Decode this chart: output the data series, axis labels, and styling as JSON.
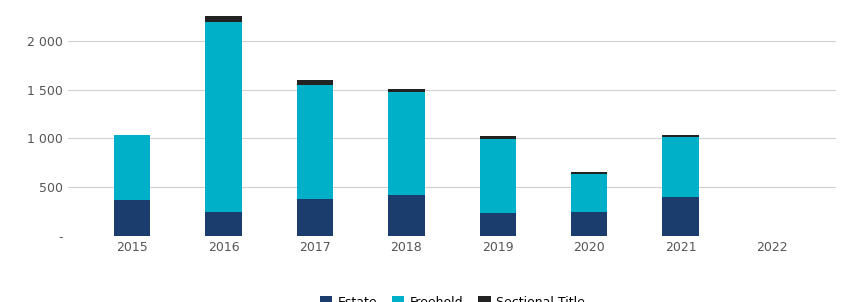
{
  "years": [
    "2015",
    "2016",
    "2017",
    "2018",
    "2019",
    "2020",
    "2021",
    "2022"
  ],
  "estate": [
    370,
    240,
    380,
    420,
    230,
    240,
    400,
    0
  ],
  "freehold": [
    660,
    1960,
    1170,
    1060,
    760,
    390,
    610,
    0
  ],
  "sectional_title": [
    0,
    60,
    50,
    30,
    30,
    20,
    20,
    0
  ],
  "color_estate": "#1a3d6e",
  "color_freehold": "#00b0c8",
  "color_sectional": "#222222",
  "bar_width": 0.4,
  "ylim": [
    0,
    2300
  ],
  "yticks": [
    0,
    500,
    1000,
    1500,
    2000
  ],
  "ytick_labels": [
    "-",
    "500",
    "1 000",
    "1 500",
    "2 000"
  ],
  "legend_labels": [
    "Estate",
    "Freehold",
    "Sectional Title"
  ],
  "background_color": "#ffffff",
  "grid_color": "#d0d0d0"
}
